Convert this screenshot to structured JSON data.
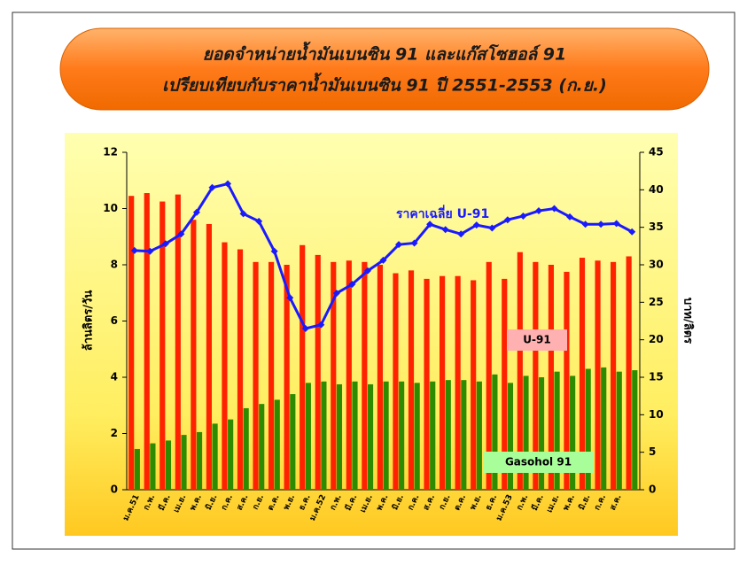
{
  "chart_data": {
    "type": "bar_line",
    "title": [
      "ยอดจำหน่ายน้ำมันเบนซิน 91 และแก๊สโซฮอล์ 91",
      "เปรียบเทียบกับราคาน้ำมันเบนซิน 91 ปี 2551-2553 (ก.ย.)"
    ],
    "y_label": "ล้านลิตร/วัน",
    "y2_label": "บาท/ลิตร",
    "categories": [
      "ม.ค.51",
      "ก.พ.",
      "มี.ค.",
      "เม.ย.",
      "พ.ค.",
      "มิ.ย.",
      "ก.ค.",
      "ส.ค.",
      "ก.ย.",
      "ต.ค.",
      "พ.ย.",
      "ธ.ค.",
      "ม.ค.52",
      "ก.พ.",
      "มี.ค.",
      "เม.ย.",
      "พ.ค.",
      "มิ.ย.",
      "ก.ค.",
      "ส.ค.",
      "ก.ย.",
      "ต.ค.",
      "พ.ย.",
      "ธ.ค.",
      "ม.ค.53",
      "ก.พ.",
      "มี.ค.",
      "เม.ย.",
      "พ.ค.",
      "มิ.ย.",
      "ก.ค.",
      "ส.ค.",
      null
    ],
    "series": [
      {
        "name": "U-91",
        "color": "#ff2200",
        "kind": "bar",
        "values": [
          10.45,
          10.55,
          10.25,
          10.5,
          9.6,
          9.45,
          8.8,
          8.55,
          8.1,
          8.1,
          8.0,
          8.7,
          8.35,
          8.1,
          8.15,
          8.1,
          8.0,
          7.7,
          7.8,
          7.5,
          7.6,
          7.6,
          7.45,
          8.1,
          7.5,
          8.45,
          8.1,
          8.0,
          7.75,
          8.25,
          8.15,
          8.1,
          8.3
        ]
      },
      {
        "name": "Gasohol 91",
        "color": "#2e8b00",
        "kind": "bar",
        "values": [
          1.45,
          1.65,
          1.75,
          1.95,
          2.05,
          2.35,
          2.5,
          2.9,
          3.05,
          3.2,
          3.4,
          3.8,
          3.85,
          3.75,
          3.85,
          3.75,
          3.85,
          3.85,
          3.8,
          3.85,
          3.9,
          3.9,
          3.85,
          4.1,
          3.8,
          4.05,
          4.0,
          4.2,
          4.05,
          4.3,
          4.35,
          4.2,
          4.25
        ]
      },
      {
        "name": "ราคาเฉลี่ย U-91",
        "color": "#1a1aff",
        "kind": "line",
        "axis": "y2",
        "values": [
          31.9,
          31.8,
          32.8,
          34.1,
          37,
          40.3,
          40.8,
          36.8,
          35.8,
          31.8,
          25.6,
          21.5,
          22,
          26.2,
          27.4,
          29.2,
          30.6,
          32.7,
          32.9,
          35.4,
          34.7,
          34.1,
          35.3,
          34.9,
          36,
          36.5,
          37.2,
          37.5,
          36.4,
          35.4,
          35.4,
          35.5,
          34.4
        ]
      }
    ],
    "ylim": [
      0,
      12
    ],
    "yticks": [
      0,
      2,
      4,
      6,
      8,
      10,
      12
    ],
    "y2lim": [
      0,
      45
    ],
    "y2ticks": [
      0,
      5,
      10,
      15,
      20,
      25,
      30,
      35,
      40,
      45
    ]
  }
}
